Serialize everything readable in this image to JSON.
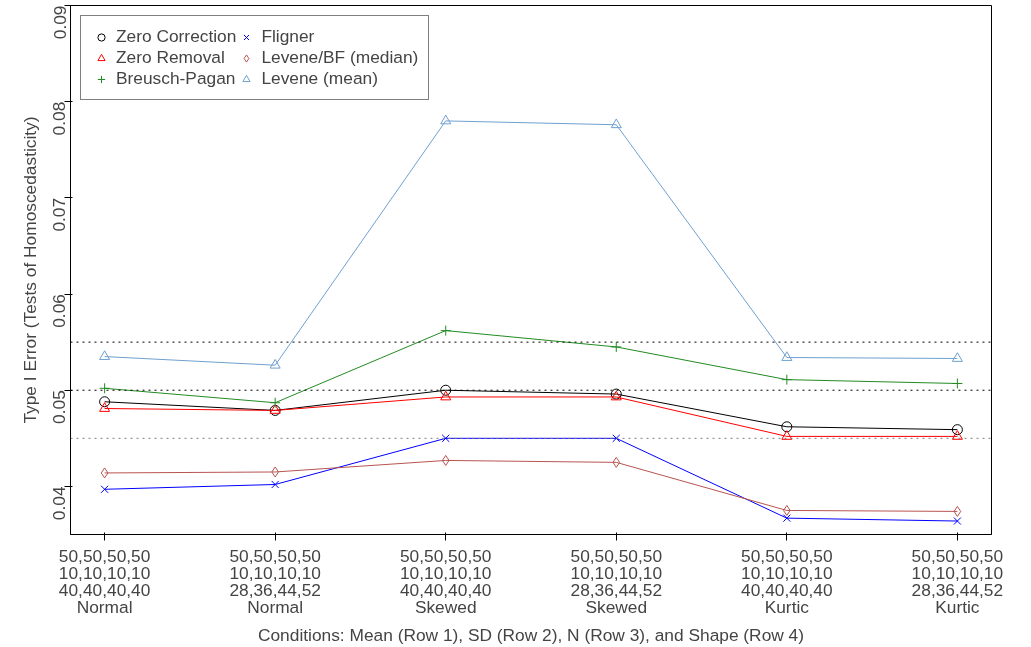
{
  "chart_data": {
    "type": "line",
    "xlabel": "Conditions: Mean (Row 1), SD (Row 2), N (Row 3), and Shape (Row 4)",
    "ylabel": "Type I Error (Tests of Homoscedasticity)",
    "categories": [
      "50,50,50,50\n10,10,10,10\n40,40,40,40\nNormal",
      "50,50,50,50\n10,10,10,10\n28,36,44,52\nNormal",
      "50,50,50,50\n10,10,10,10\n40,40,40,40\nSkewed",
      "50,50,50,50\n10,10,10,10\n28,36,44,52\nSkewed",
      "50,50,50,50\n10,10,10,10\n40,40,40,40\nKurtic",
      "50,50,50,50\n10,10,10,10\n28,36,44,52\nKurtic"
    ],
    "ylim": [
      0.035,
      0.09
    ],
    "yticks": [
      0.04,
      0.05,
      0.06,
      0.07,
      0.08,
      0.09
    ],
    "grid": false,
    "legend": "top left",
    "ref_lines": [
      {
        "axis": "y",
        "value": 0.045,
        "line_style": "dotted",
        "color": "#808080"
      },
      {
        "axis": "y",
        "value": 0.05,
        "line_style": "dotted",
        "color": "#000000"
      },
      {
        "axis": "y",
        "value": 0.055,
        "line_style": "dotted",
        "color": "#000000"
      }
    ],
    "series": [
      {
        "name": "Zero Correction",
        "color": "#000000",
        "marker": "circle",
        "values": [
          0.0488,
          0.0479,
          0.05,
          0.0496,
          0.0462,
          0.0459
        ]
      },
      {
        "name": "Zero Removal",
        "color": "#ff0000",
        "marker": "triangle",
        "values": [
          0.0481,
          0.0479,
          0.0493,
          0.0493,
          0.0452,
          0.0452
        ]
      },
      {
        "name": "Breusch-Pagan",
        "color": "#228b22",
        "marker": "cross",
        "values": [
          0.0502,
          0.0487,
          0.0562,
          0.0545,
          0.0511,
          0.0507
        ]
      },
      {
        "name": "Fligner",
        "color": "#0000ff",
        "marker": "x",
        "values": [
          0.0397,
          0.0402,
          0.045,
          0.045,
          0.0367,
          0.0364
        ]
      },
      {
        "name": "Levene/BF (median)",
        "color": "#b85450",
        "marker": "diamond",
        "values": [
          0.0414,
          0.0415,
          0.0427,
          0.0425,
          0.0375,
          0.0374
        ]
      },
      {
        "name": "Levene (mean)",
        "color": "#6fa0d0",
        "marker": "triangle",
        "values": [
          0.0535,
          0.0526,
          0.078,
          0.0776,
          0.0534,
          0.0533
        ]
      }
    ]
  }
}
